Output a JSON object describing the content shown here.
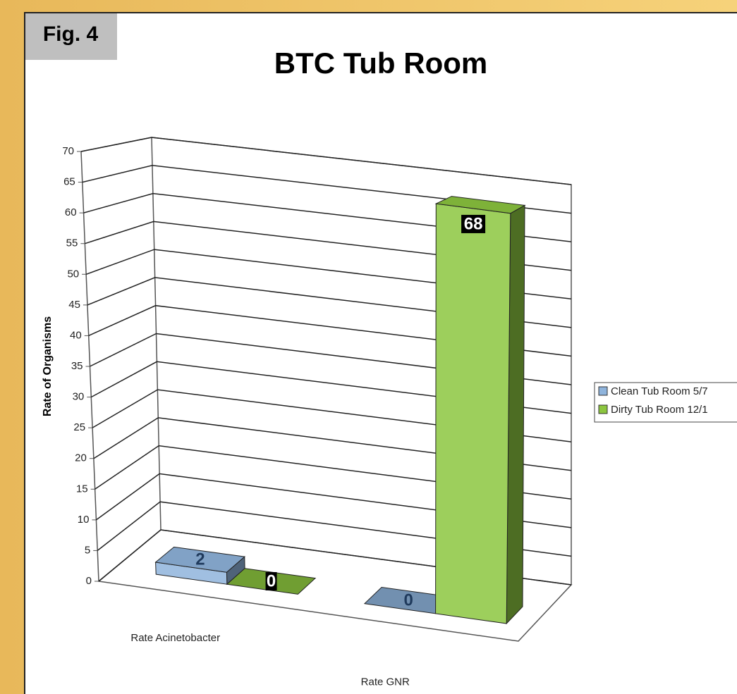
{
  "fig_label": "Fig. 4",
  "chart_data": {
    "type": "bar3d",
    "title": "BTC Tub Room",
    "y_label": "Rate of Organisms",
    "categories": [
      "Rate Acinetobacter",
      "Rate GNR"
    ],
    "series": [
      {
        "name": "Clean Tub Room 5/7",
        "color": "#8fb4dc",
        "values": [
          2,
          0
        ]
      },
      {
        "name": "Dirty Tub Room 12/1",
        "color": "#8cc63f",
        "values": [
          0,
          68
        ]
      }
    ],
    "ylim": [
      0,
      70
    ],
    "yticks": [
      0,
      5,
      10,
      15,
      20,
      25,
      30,
      35,
      40,
      45,
      50,
      55,
      60,
      65,
      70
    ],
    "grid": true,
    "legend": "right"
  }
}
